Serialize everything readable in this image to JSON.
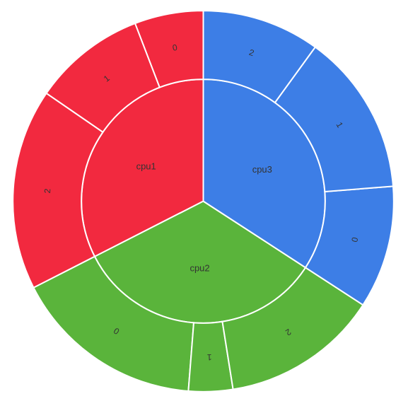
{
  "chart_data": {
    "type": "sunburst",
    "rotation_start_degrees": 90,
    "rotation_direction": "counter-clockwise",
    "outer_radius_fraction": 0.95,
    "inner_ring_radius_fraction": 0.64,
    "groups": [
      {
        "name": "cpu1",
        "color": "#f2293f",
        "children": [
          {
            "name": "0",
            "value": 14
          },
          {
            "name": "1",
            "value": 23
          },
          {
            "name": "2",
            "value": 41
          }
        ]
      },
      {
        "name": "cpu2",
        "color": "#5ab43b",
        "children": [
          {
            "name": "0",
            "value": 39
          },
          {
            "name": "1",
            "value": 9
          },
          {
            "name": "2",
            "value": 32
          }
        ]
      },
      {
        "name": "cpu3",
        "color": "#3d7ee6",
        "children": [
          {
            "name": "0",
            "value": 25
          },
          {
            "name": "1",
            "value": 33
          },
          {
            "name": "2",
            "value": 24
          }
        ]
      }
    ]
  }
}
